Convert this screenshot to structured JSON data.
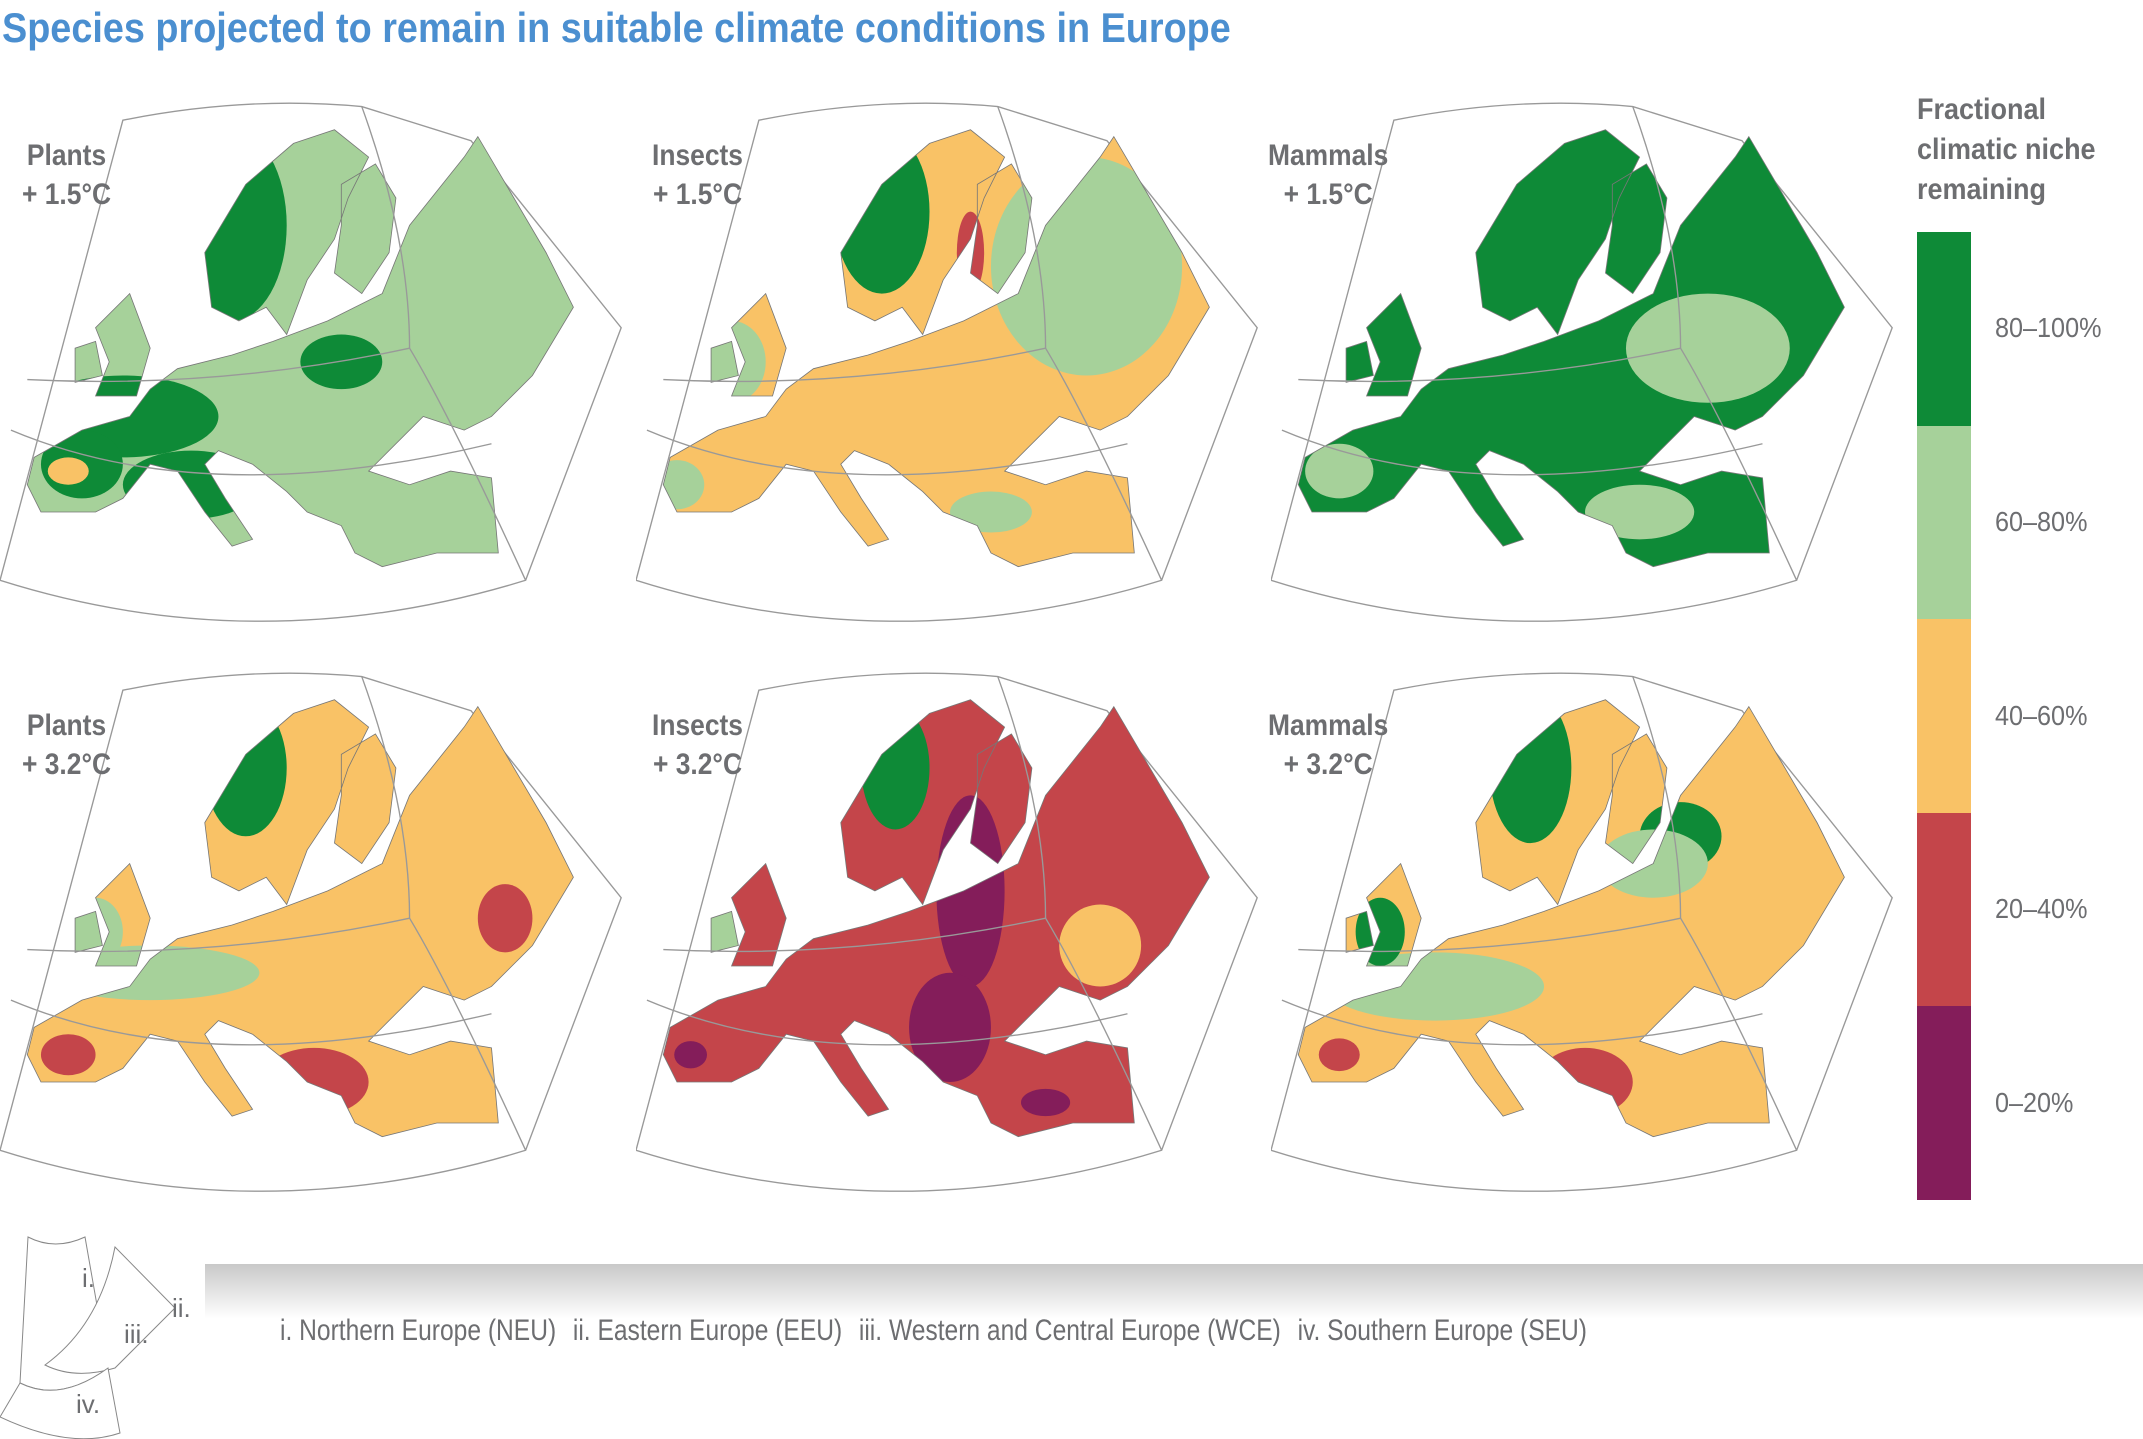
{
  "title": "Species projected to remain in suitable climate conditions in Europe",
  "panels": [
    {
      "taxon": "Plants",
      "warming": "+ 1.5°C"
    },
    {
      "taxon": "Insects",
      "warming": "+ 1.5°C"
    },
    {
      "taxon": "Mammals",
      "warming": "+ 1.5°C"
    },
    {
      "taxon": "Plants",
      "warming": "+ 3.2°C"
    },
    {
      "taxon": "Insects",
      "warming": "+ 3.2°C"
    },
    {
      "taxon": "Mammals",
      "warming": "+ 3.2°C"
    }
  ],
  "legend": {
    "title_lines": [
      "Fractional",
      "climatic niche",
      "remaining"
    ],
    "classes": [
      {
        "label": "80–100%",
        "color": "#0e8a37"
      },
      {
        "label": "60–80%",
        "color": "#a6d19a"
      },
      {
        "label": "40–60%",
        "color": "#f9c266"
      },
      {
        "label": "20–40%",
        "color": "#c4454a"
      },
      {
        "label": "0–20%",
        "color": "#841d5a"
      }
    ]
  },
  "regions": {
    "inset_labels": [
      "i.",
      "ii.",
      "iii.",
      "iv."
    ],
    "items": [
      "i. Northern Europe (NEU)",
      "ii. Eastern Europe (EEU)",
      "iii. Western and Central Europe (WCE)",
      "iv. Southern Europe (SEU)"
    ]
  }
}
